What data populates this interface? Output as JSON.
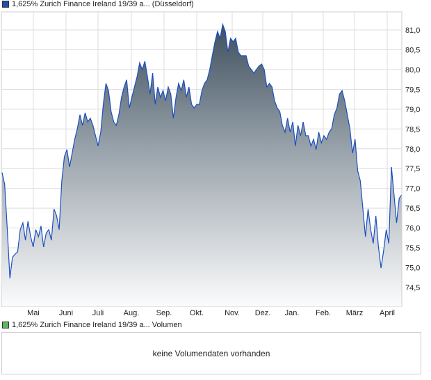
{
  "legend_price": {
    "label": "1,625% Zurich Finance Ireland 19/39 a... (Düsseldorf)",
    "color": "#1f4fb5"
  },
  "legend_volume": {
    "label": "1,625% Zurich Finance Ireland 19/39 a... Volumen",
    "color": "#5cb85c"
  },
  "volume_message": "keine Volumendaten vorhanden",
  "chart_data": {
    "type": "area",
    "title": "1,625% Zurich Finance Ireland 19/39 a... (Düsseldorf)",
    "xlabel": "",
    "ylabel": "",
    "ylim": [
      74.05,
      81.45
    ],
    "yticks": [
      "74,5",
      "75,0",
      "75,5",
      "76,0",
      "76,5",
      "77,0",
      "77,5",
      "78,0",
      "78,5",
      "79,0",
      "79,5",
      "80,0",
      "80,5",
      "81,0"
    ],
    "ytick_values": [
      74.5,
      75.0,
      75.5,
      76.0,
      76.5,
      77.0,
      77.5,
      78.0,
      78.5,
      79.0,
      79.5,
      80.0,
      80.5,
      81.0
    ],
    "xticks": [
      "Mai",
      "Juni",
      "Juli",
      "Aug.",
      "Sep.",
      "Okt.",
      "Nov.",
      "Dez.",
      "Jan.",
      "Feb.",
      "März",
      "April"
    ],
    "grid": true,
    "line_color": "#1a4fc0",
    "values": [
      77.4,
      77.1,
      75.96,
      74.73,
      75.26,
      75.34,
      75.4,
      75.96,
      76.13,
      75.69,
      76.17,
      75.78,
      75.52,
      75.96,
      75.78,
      76.05,
      75.52,
      75.87,
      75.96,
      75.69,
      76.48,
      76.31,
      75.96,
      77.19,
      77.8,
      77.98,
      77.54,
      77.89,
      78.24,
      78.51,
      78.86,
      78.59,
      78.91,
      78.68,
      78.77,
      78.59,
      78.33,
      78.07,
      78.42,
      79.12,
      79.65,
      79.47,
      78.94,
      78.68,
      78.59,
      78.86,
      79.3,
      79.56,
      79.74,
      79.03,
      79.3,
      79.56,
      79.82,
      80.17,
      80.0,
      80.21,
      79.82,
      79.38,
      79.91,
      79.12,
      79.56,
      79.3,
      79.47,
      79.21,
      79.56,
      79.38,
      78.77,
      79.3,
      79.65,
      79.47,
      79.74,
      79.3,
      79.56,
      79.12,
      79.03,
      79.12,
      79.12,
      79.47,
      79.65,
      79.74,
      80.0,
      80.35,
      80.7,
      80.96,
      80.79,
      81.14,
      80.96,
      80.44,
      80.79,
      80.7,
      80.79,
      80.44,
      80.35,
      80.35,
      80.35,
      80.09,
      80.0,
      79.91,
      80.0,
      80.09,
      80.14,
      80.0,
      79.56,
      79.65,
      79.56,
      79.21,
      79.03,
      78.94,
      78.59,
      78.42,
      78.77,
      78.42,
      78.68,
      78.07,
      78.59,
      78.33,
      78.68,
      78.33,
      78.33,
      78.07,
      78.24,
      77.98,
      78.42,
      78.15,
      78.33,
      78.24,
      78.42,
      78.51,
      78.86,
      79.03,
      79.38,
      79.47,
      79.21,
      78.86,
      78.51,
      77.89,
      78.24,
      77.45,
      77.19,
      76.48,
      75.78,
      76.48,
      75.96,
      75.61,
      76.31,
      75.52,
      74.99,
      75.43,
      75.96,
      75.61,
      77.54,
      76.84,
      76.13,
      76.75,
      76.84
    ]
  }
}
